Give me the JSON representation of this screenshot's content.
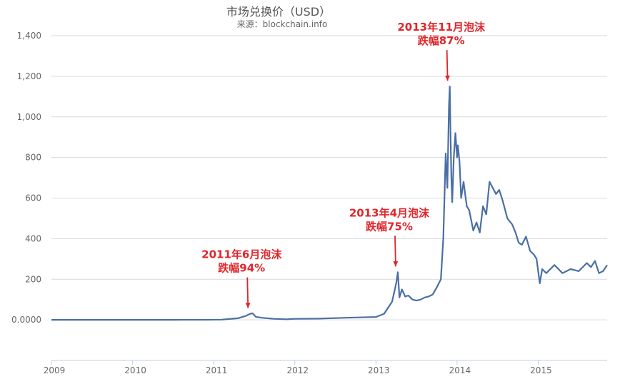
{
  "chart_data": {
    "type": "line",
    "title": "市场兑换价（USD）",
    "subtitle": "来源：blockchain.info",
    "xlabel": "",
    "ylabel": "",
    "xlim": [
      2009.0,
      2015.85
    ],
    "ylim": [
      -200,
      1400
    ],
    "y_ticks": [
      {
        "value": 0,
        "label": "0.0000"
      },
      {
        "value": 200,
        "label": "200"
      },
      {
        "value": 400,
        "label": "400"
      },
      {
        "value": 600,
        "label": "600"
      },
      {
        "value": 800,
        "label": "800"
      },
      {
        "value": 1000,
        "label": "1,000"
      },
      {
        "value": 1200,
        "label": "1,200"
      },
      {
        "value": 1400,
        "label": "1,400"
      }
    ],
    "x_ticks": [
      {
        "value": 2009,
        "label": "2009"
      },
      {
        "value": 2010,
        "label": "2010"
      },
      {
        "value": 2011,
        "label": "2011"
      },
      {
        "value": 2012,
        "label": "2012"
      },
      {
        "value": 2013,
        "label": "2013"
      },
      {
        "value": 2014,
        "label": "2014"
      },
      {
        "value": 2015,
        "label": "2015"
      }
    ],
    "grid": {
      "horizontal": true,
      "vertical": false
    },
    "series": [
      {
        "name": "",
        "color": "#4a6fa5",
        "x": [
          2009.0,
          2010.0,
          2010.5,
          2010.9,
          2011.1,
          2011.3,
          2011.4,
          2011.45,
          2011.48,
          2011.52,
          2011.6,
          2011.75,
          2011.9,
          2012.0,
          2012.3,
          2012.6,
          2012.8,
          2013.0,
          2013.1,
          2013.2,
          2013.25,
          2013.27,
          2013.29,
          2013.32,
          2013.36,
          2013.4,
          2013.45,
          2013.5,
          2013.55,
          2013.6,
          2013.65,
          2013.7,
          2013.75,
          2013.8,
          2013.83,
          2013.86,
          2013.88,
          2013.9,
          2013.91,
          2013.92,
          2013.93,
          2013.94,
          2013.96,
          2013.98,
          2014.0,
          2014.01,
          2014.03,
          2014.05,
          2014.08,
          2014.1,
          2014.12,
          2014.15,
          2014.2,
          2014.24,
          2014.28,
          2014.32,
          2014.36,
          2014.4,
          2014.44,
          2014.48,
          2014.52,
          2014.56,
          2014.62,
          2014.68,
          2014.72,
          2014.76,
          2014.8,
          2014.85,
          2014.9,
          2014.95,
          2014.98,
          2015.02,
          2015.05,
          2015.1,
          2015.2,
          2015.3,
          2015.4,
          2015.5,
          2015.6,
          2015.65,
          2015.7,
          2015.75,
          2015.8,
          2015.85
        ],
        "values": [
          0,
          0,
          0.1,
          0.3,
          1,
          8,
          20,
          30,
          32,
          15,
          10,
          5,
          3,
          5,
          6,
          10,
          12,
          14,
          30,
          90,
          180,
          235,
          110,
          150,
          115,
          120,
          100,
          95,
          100,
          110,
          115,
          125,
          160,
          200,
          400,
          820,
          650,
          1050,
          1150,
          900,
          700,
          580,
          800,
          920,
          800,
          860,
          780,
          600,
          680,
          620,
          560,
          540,
          440,
          480,
          430,
          560,
          520,
          680,
          650,
          620,
          640,
          590,
          500,
          470,
          430,
          380,
          370,
          410,
          340,
          320,
          300,
          180,
          250,
          230,
          270,
          230,
          250,
          240,
          280,
          260,
          290,
          230,
          240,
          270
        ]
      }
    ],
    "annotations": [
      {
        "x": 2011.45,
        "y": 30,
        "lines": [
          "2011年6月泡沫",
          "跌幅94%"
        ]
      },
      {
        "x": 2013.27,
        "y": 235,
        "lines": [
          "2013年4月泡沫",
          "跌幅75%"
        ]
      },
      {
        "x": 2013.91,
        "y": 1150,
        "lines": [
          "2013年11月泡沫",
          "跌幅87%"
        ]
      }
    ]
  }
}
